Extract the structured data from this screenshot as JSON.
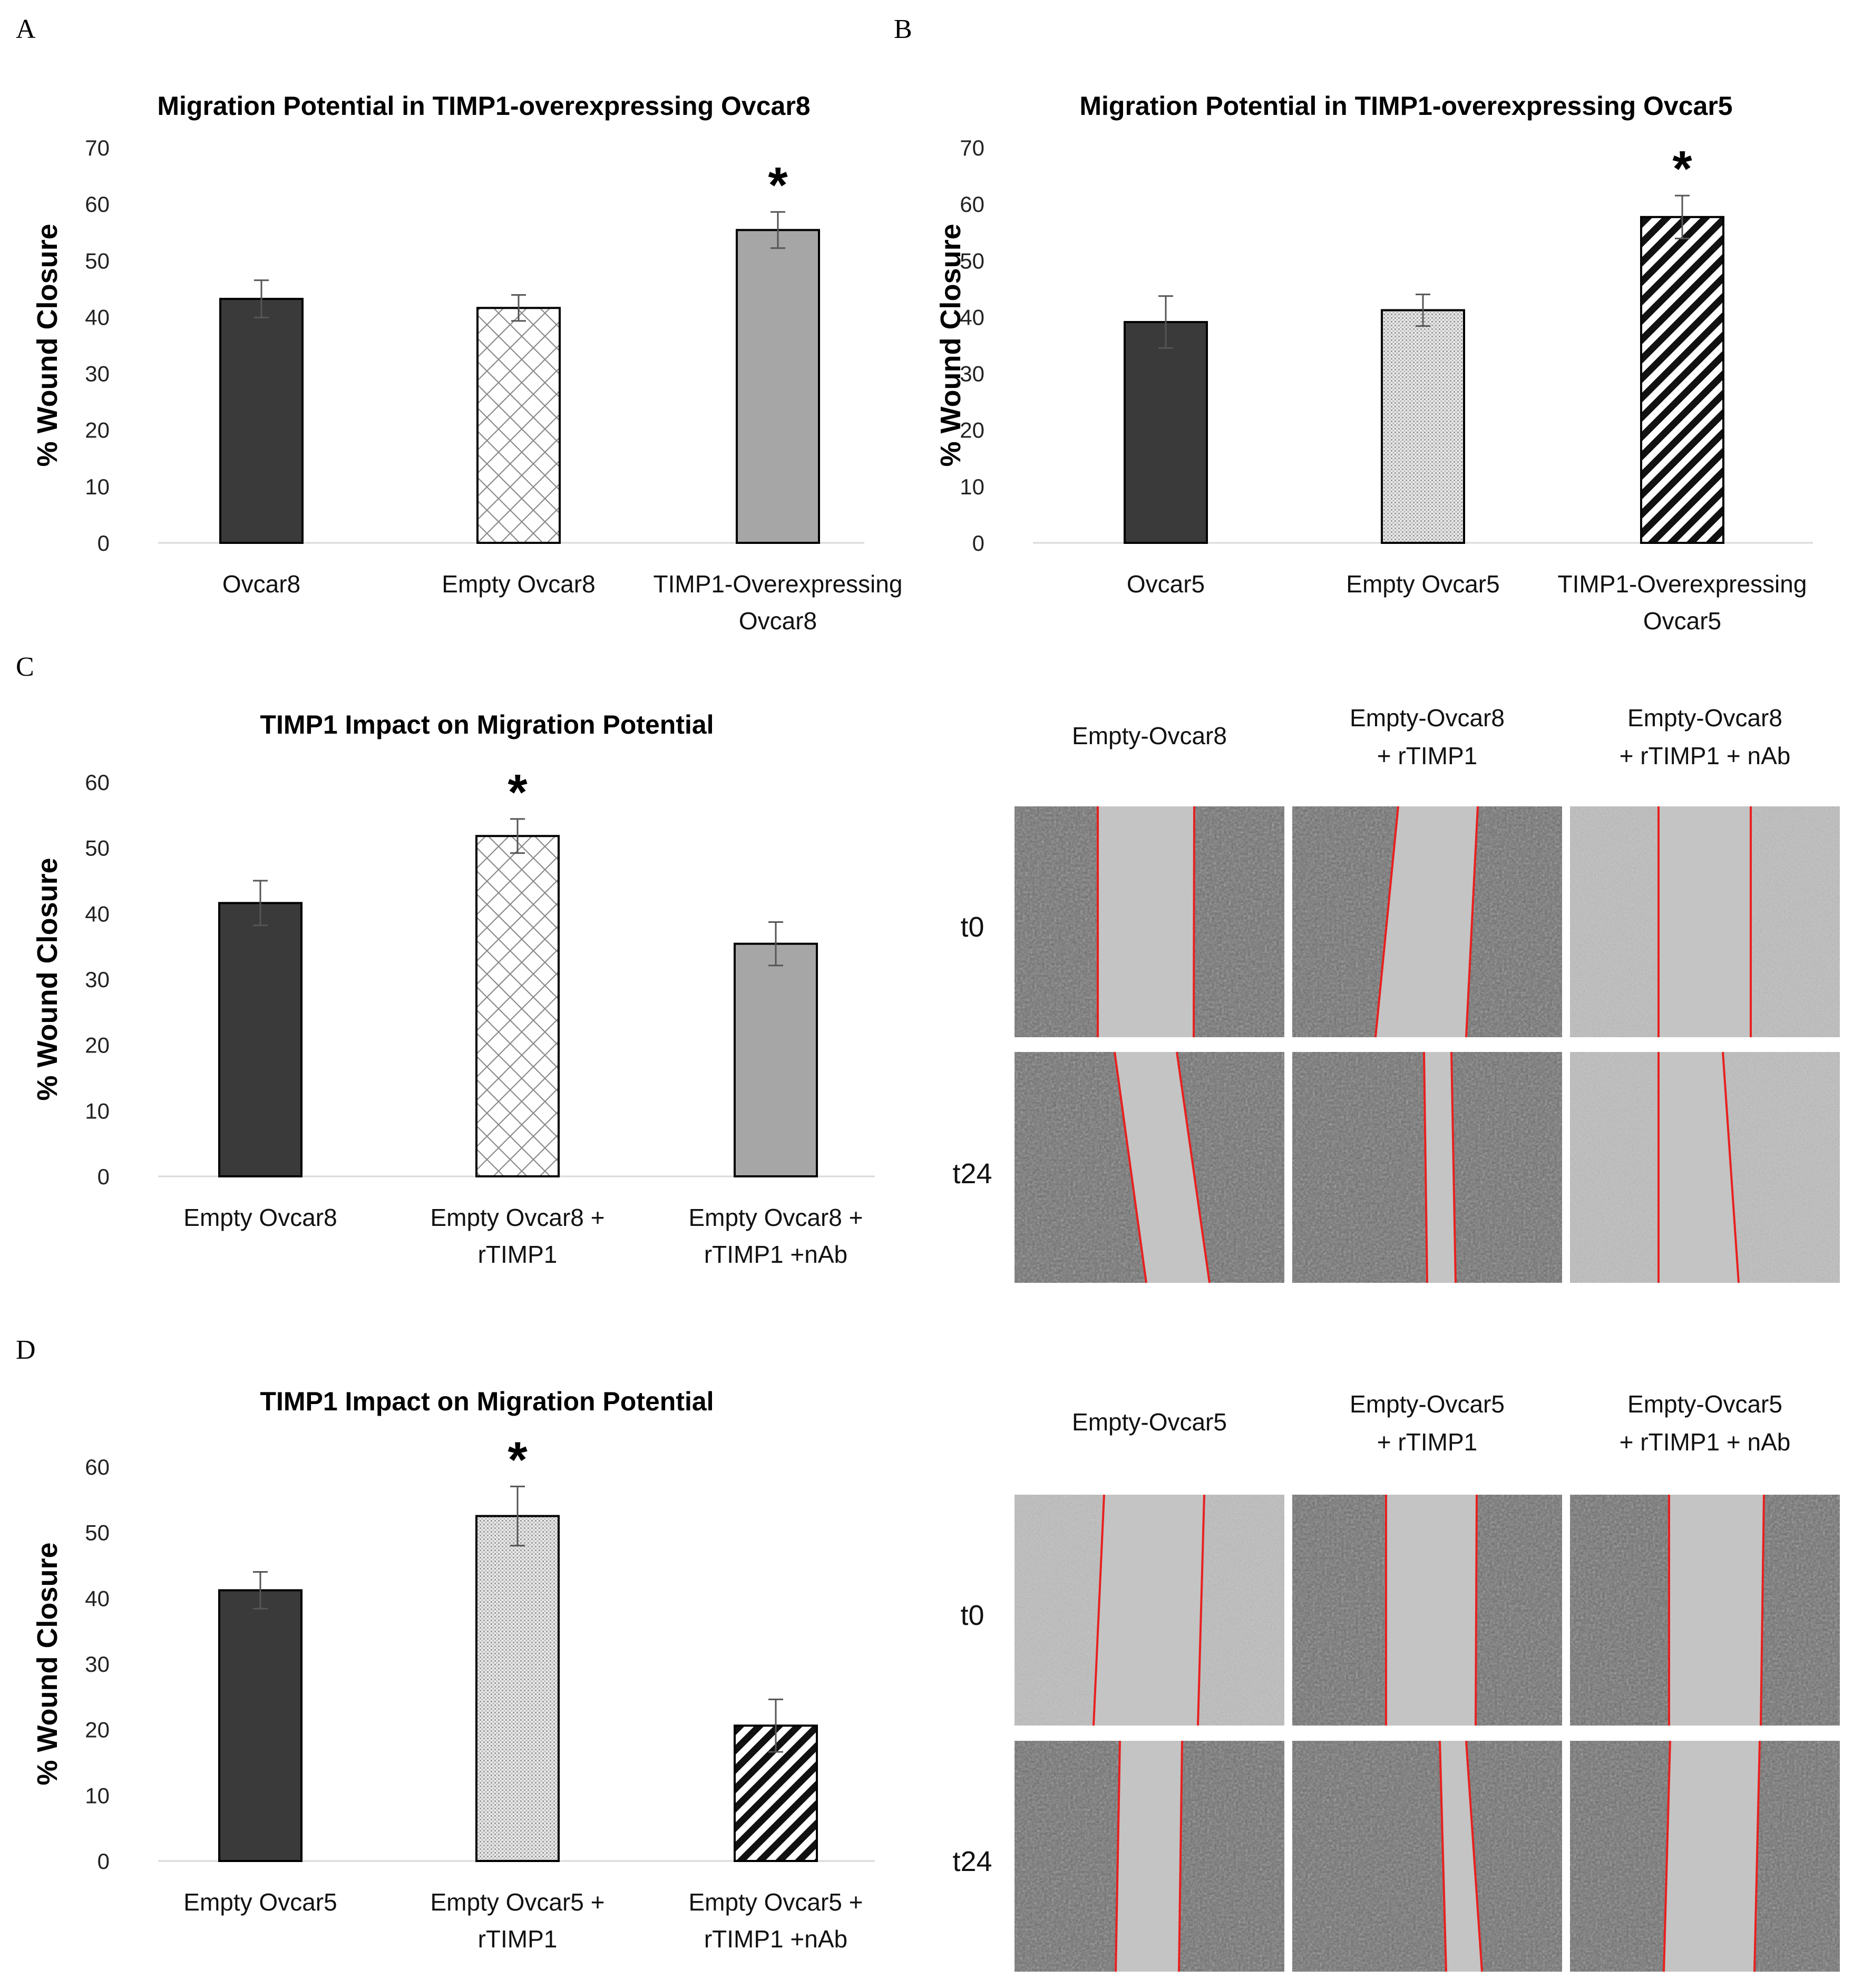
{
  "panels": [
    {
      "letter": "A",
      "chart": {
        "type": "bar",
        "title": "Migration Potential in TIMP1-overexpressing Ovcar8",
        "ylabel": "% Wound Closure",
        "ylim": [
          0,
          70
        ],
        "yticks": [
          0,
          10,
          20,
          30,
          40,
          50,
          60,
          70
        ],
        "categories": [
          [
            "Ovcar8"
          ],
          [
            "Empty Ovcar8"
          ],
          [
            "TIMP1-Overexpressing",
            "Ovcar8"
          ]
        ],
        "values": [
          43.2,
          41.6,
          55.4
        ],
        "errors": [
          3.3,
          2.3,
          3.2
        ],
        "fills": [
          "solid-dark",
          "crosshatch",
          "solid-gray"
        ],
        "significance": [
          "",
          "",
          "*"
        ]
      }
    },
    {
      "letter": "B",
      "chart": {
        "type": "bar",
        "title": "Migration Potential in TIMP1-overexpressing Ovcar5",
        "ylabel": "% Wound Closure",
        "ylim": [
          0,
          70
        ],
        "yticks": [
          0,
          10,
          20,
          30,
          40,
          50,
          60,
          70
        ],
        "categories": [
          [
            "Ovcar5"
          ],
          [
            "Empty Ovcar5"
          ],
          [
            "TIMP1-Overexpressing",
            "Ovcar5"
          ]
        ],
        "values": [
          39.1,
          41.2,
          57.7
        ],
        "errors": [
          4.6,
          2.8,
          3.8
        ],
        "fills": [
          "solid-dark",
          "fine-dots",
          "diagonal"
        ],
        "significance": [
          "",
          "",
          "*"
        ]
      }
    },
    {
      "letter": "C",
      "chart": {
        "type": "bar",
        "title": "TIMP1 Impact on Migration Potential",
        "ylabel": "% Wound Closure",
        "ylim": [
          0,
          60
        ],
        "yticks": [
          0,
          10,
          20,
          30,
          40,
          50,
          60
        ],
        "categories": [
          [
            "Empty Ovcar8"
          ],
          [
            "Empty Ovcar8 +",
            "rTIMP1"
          ],
          [
            "Empty Ovcar8 +",
            "rTIMP1 +nAb"
          ]
        ],
        "values": [
          41.6,
          51.8,
          35.4
        ],
        "errors": [
          3.4,
          2.6,
          3.3
        ],
        "fills": [
          "solid-dark",
          "crosshatch",
          "solid-gray"
        ],
        "significance": [
          "",
          "*",
          ""
        ]
      },
      "images": {
        "columns": [
          [
            "Empty-Ovcar8"
          ],
          [
            "Empty-Ovcar8",
            "+ rTIMP1"
          ],
          [
            "Empty-Ovcar8",
            "+ rTIMP1 + nAb"
          ]
        ],
        "rows": [
          "t0",
          "t24"
        ]
      }
    },
    {
      "letter": "D",
      "chart": {
        "type": "bar",
        "title": "TIMP1 Impact on Migration Potential",
        "ylabel": "% Wound Closure",
        "ylim": [
          0,
          60
        ],
        "yticks": [
          0,
          10,
          20,
          30,
          40,
          50,
          60
        ],
        "categories": [
          [
            "Empty Ovcar5"
          ],
          [
            "Empty Ovcar5 +",
            "rTIMP1"
          ],
          [
            "Empty Ovcar5 +",
            "rTIMP1 +nAb"
          ]
        ],
        "values": [
          41.2,
          52.5,
          20.6
        ],
        "errors": [
          2.8,
          4.5,
          4.0
        ],
        "fills": [
          "solid-dark",
          "fine-dots",
          "diagonal"
        ],
        "significance": [
          "",
          "*",
          ""
        ]
      },
      "images": {
        "columns": [
          [
            "Empty-Ovcar5"
          ],
          [
            "Empty-Ovcar5",
            "+ rTIMP1"
          ],
          [
            "Empty-Ovcar5",
            "+ rTIMP1 + nAb"
          ]
        ],
        "rows": [
          "t0",
          "t24"
        ]
      }
    }
  ],
  "colors": {
    "dark_bar": "#3a3a3a",
    "gray_bar": "#a6a6a6",
    "axis": "#d9d9d9",
    "wound_edge": "#e8201f",
    "cells_dark": "#6e6e6e",
    "cells_light": "#bdbdbd",
    "gap": "#c4c4c4"
  },
  "chart_data": [
    {
      "type": "bar",
      "title": "Migration Potential in TIMP1-overexpressing Ovcar8",
      "ylabel": "% Wound Closure",
      "categories": [
        "Ovcar8",
        "Empty Ovcar8",
        "TIMP1-Overexpressing Ovcar8"
      ],
      "values": [
        43.2,
        41.6,
        55.4
      ],
      "error_bars": [
        3.3,
        2.3,
        3.2
      ],
      "ylim": [
        0,
        70
      ],
      "grid": false
    },
    {
      "type": "bar",
      "title": "Migration Potential in TIMP1-overexpressing Ovcar5",
      "ylabel": "% Wound Closure",
      "categories": [
        "Ovcar5",
        "Empty Ovcar5",
        "TIMP1-Overexpressing Ovcar5"
      ],
      "values": [
        39.1,
        41.2,
        57.7
      ],
      "error_bars": [
        4.6,
        2.8,
        3.8
      ],
      "ylim": [
        0,
        70
      ],
      "grid": false
    },
    {
      "type": "bar",
      "title": "TIMP1 Impact on Migration Potential",
      "ylabel": "% Wound Closure",
      "categories": [
        "Empty Ovcar8",
        "Empty Ovcar8 + rTIMP1",
        "Empty Ovcar8 + rTIMP1 +nAb"
      ],
      "values": [
        41.6,
        51.8,
        35.4
      ],
      "error_bars": [
        3.4,
        2.6,
        3.3
      ],
      "ylim": [
        0,
        60
      ],
      "grid": false
    },
    {
      "type": "bar",
      "title": "TIMP1 Impact on Migration Potential",
      "ylabel": "% Wound Closure",
      "categories": [
        "Empty Ovcar5",
        "Empty Ovcar5 + rTIMP1",
        "Empty Ovcar5 + rTIMP1 +nAb"
      ],
      "values": [
        41.2,
        52.5,
        20.6
      ],
      "error_bars": [
        2.8,
        4.5,
        4.0
      ],
      "ylim": [
        0,
        60
      ],
      "grid": false
    }
  ]
}
